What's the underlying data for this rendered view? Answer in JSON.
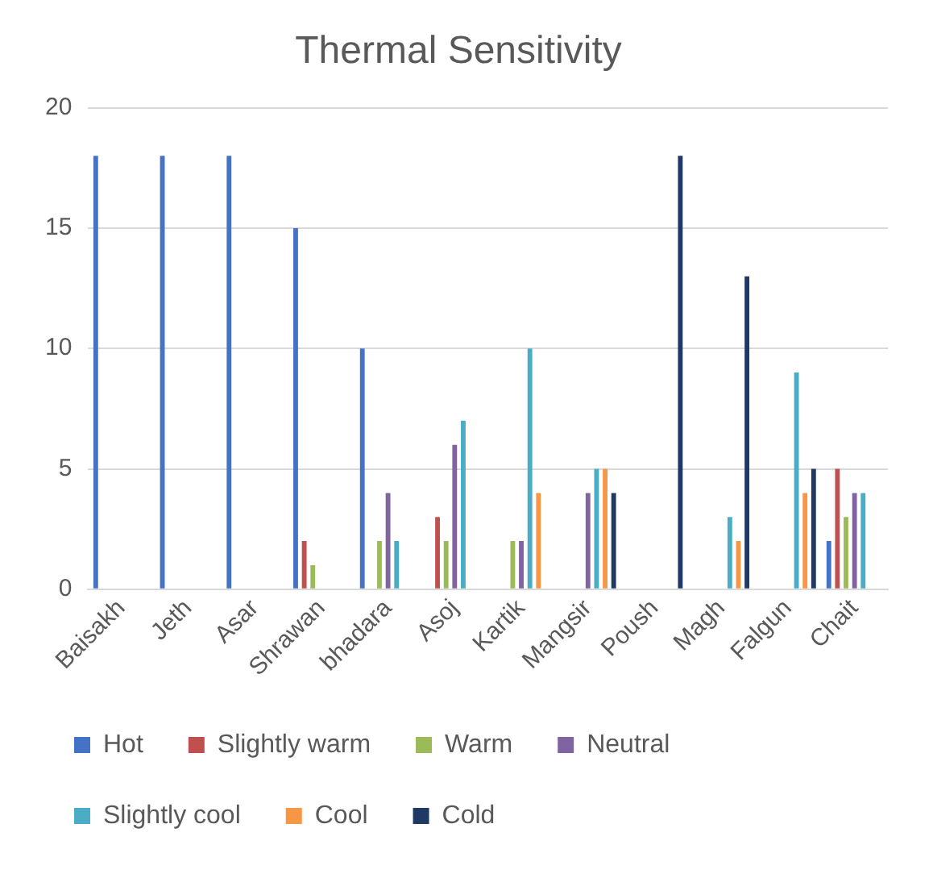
{
  "chart_data": {
    "type": "bar",
    "title": "Thermal Sensitivity",
    "categories": [
      "Baisakh",
      "Jeth",
      "Asar",
      "Shrawan",
      "bhadara",
      "Asoj",
      "Kartik",
      "Mangsir",
      "Poush",
      "Magh",
      "Falgun",
      "Chait"
    ],
    "series": [
      {
        "name": "Hot",
        "color": "#4472c4",
        "values": [
          18,
          18,
          18,
          15,
          10,
          0,
          0,
          0,
          0,
          0,
          0,
          2
        ]
      },
      {
        "name": "Slightly warm",
        "color": "#c0504d",
        "values": [
          0,
          0,
          0,
          2,
          0,
          3,
          0,
          0,
          0,
          0,
          0,
          5
        ]
      },
      {
        "name": "Warm",
        "color": "#9bbb59",
        "values": [
          0,
          0,
          0,
          1,
          2,
          2,
          2,
          0,
          0,
          0,
          0,
          3
        ]
      },
      {
        "name": "Neutral",
        "color": "#8064a2",
        "values": [
          0,
          0,
          0,
          0,
          4,
          6,
          2,
          4,
          0,
          0,
          0,
          4
        ]
      },
      {
        "name": "Slightly cool",
        "color": "#4bacc6",
        "values": [
          0,
          0,
          0,
          0,
          2,
          7,
          10,
          5,
          0,
          3,
          9,
          4
        ]
      },
      {
        "name": "Cool",
        "color": "#f79646",
        "values": [
          0,
          0,
          0,
          0,
          0,
          0,
          4,
          5,
          0,
          2,
          4,
          0
        ]
      },
      {
        "name": "Cold",
        "color": "#1f3864",
        "values": [
          0,
          0,
          0,
          0,
          0,
          0,
          0,
          4,
          18,
          13,
          5,
          0
        ]
      }
    ],
    "ylim": [
      0,
      20
    ],
    "yticks": [
      0,
      5,
      10,
      15,
      20
    ],
    "grid": "y",
    "legend": "bottom"
  }
}
